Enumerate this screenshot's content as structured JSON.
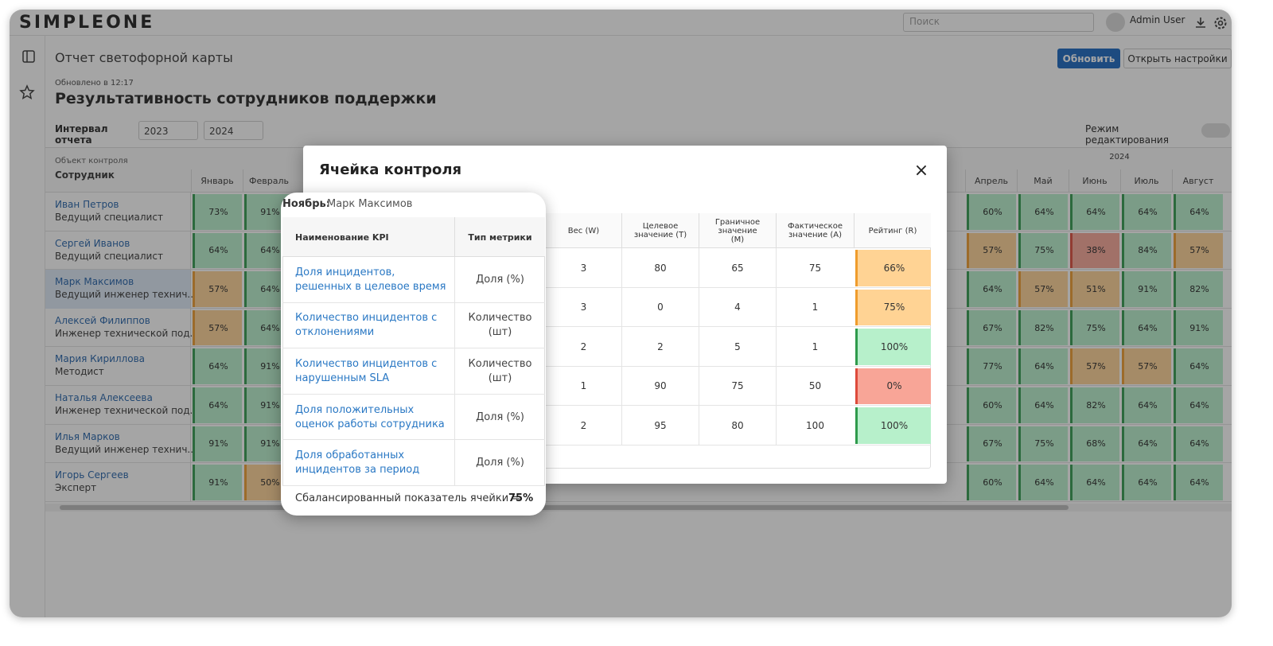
{
  "header": {
    "logo": "SIMPLEONE",
    "search_placeholder": "Поиск",
    "user": "Admin User"
  },
  "page": {
    "title": "Отчет светофорной карты",
    "buttons": [
      "Обновить",
      "Открыть настройки"
    ],
    "updated": "Обновлено в 12:17",
    "report_title": "Результативность сотрудников поддержки",
    "interval_label": "Интервал отчета",
    "interval": [
      "2023",
      "2024"
    ],
    "edit_mode": "Режим редактирования"
  },
  "table": {
    "object_label": "Объект контроля",
    "subject_label": "Сотрудник",
    "year": "2024",
    "left_months": [
      "Январь",
      "Февраль"
    ],
    "right_months": [
      "Апрель",
      "Май",
      "Июнь",
      "Июль",
      "Август"
    ],
    "selected_row": 2,
    "rows": [
      {
        "name": "Иван Петров",
        "role": "Ведущий специалист",
        "left": [
          {
            "text": "73%",
            "color": "green"
          },
          {
            "text": "91%",
            "color": "green"
          }
        ],
        "right": [
          {
            "text": "60%",
            "color": "green"
          },
          {
            "text": "64%",
            "color": "green"
          },
          {
            "text": "64%",
            "color": "green"
          },
          {
            "text": "64%",
            "color": "green"
          },
          {
            "text": "64%",
            "color": "green"
          }
        ]
      },
      {
        "name": "Сергей Иванов",
        "role": "Ведущий специалист",
        "left": [
          {
            "text": "64%",
            "color": "green"
          },
          {
            "text": "64%",
            "color": "green"
          }
        ],
        "right": [
          {
            "text": "57%",
            "color": "orange"
          },
          {
            "text": "75%",
            "color": "green"
          },
          {
            "text": "38%",
            "color": "red"
          },
          {
            "text": "84%",
            "color": "green"
          },
          {
            "text": "57%",
            "color": "orange"
          }
        ]
      },
      {
        "name": "Марк Максимов",
        "role": "Ведущий инженер технич...",
        "left": [
          {
            "text": "57%",
            "color": "orange"
          },
          {
            "text": "64%",
            "color": "green"
          }
        ],
        "right": [
          {
            "text": "64%",
            "color": "green"
          },
          {
            "text": "57%",
            "color": "orange"
          },
          {
            "text": "51%",
            "color": "orange"
          },
          {
            "text": "91%",
            "color": "green"
          },
          {
            "text": "82%",
            "color": "green"
          }
        ]
      },
      {
        "name": "Алексей Филиппов",
        "role": "Инженер технической под...",
        "left": [
          {
            "text": "57%",
            "color": "orange"
          },
          {
            "text": "64%",
            "color": "green"
          }
        ],
        "right": [
          {
            "text": "67%",
            "color": "green"
          },
          {
            "text": "82%",
            "color": "green"
          },
          {
            "text": "75%",
            "color": "green"
          },
          {
            "text": "64%",
            "color": "green"
          },
          {
            "text": "91%",
            "color": "green"
          }
        ]
      },
      {
        "name": "Мария Кириллова",
        "role": "Методист",
        "left": [
          {
            "text": "64%",
            "color": "green"
          },
          {
            "text": "91%",
            "color": "green"
          }
        ],
        "right": [
          {
            "text": "77%",
            "color": "green"
          },
          {
            "text": "64%",
            "color": "green"
          },
          {
            "text": "57%",
            "color": "orange"
          },
          {
            "text": "57%",
            "color": "orange"
          },
          {
            "text": "64%",
            "color": "green"
          }
        ]
      },
      {
        "name": "Наталья Алексеева",
        "role": "Инженер технической под...",
        "left": [
          {
            "text": "64%",
            "color": "green"
          },
          {
            "text": "91%",
            "color": "green"
          }
        ],
        "right": [
          {
            "text": "60%",
            "color": "green"
          },
          {
            "text": "64%",
            "color": "green"
          },
          {
            "text": "82%",
            "color": "green"
          },
          {
            "text": "64%",
            "color": "green"
          },
          {
            "text": "64%",
            "color": "green"
          }
        ]
      },
      {
        "name": "Илья Марков",
        "role": "Ведущий инженер технич...",
        "left": [
          {
            "text": "91%",
            "color": "green"
          },
          {
            "text": "91%",
            "color": "green"
          }
        ],
        "right": [
          {
            "text": "67%",
            "color": "green"
          },
          {
            "text": "75%",
            "color": "green"
          },
          {
            "text": "68%",
            "color": "green"
          },
          {
            "text": "64%",
            "color": "green"
          },
          {
            "text": "64%",
            "color": "green"
          }
        ]
      },
      {
        "name": "Игорь Сергеев",
        "role": "Эксперт",
        "left": [
          {
            "text": "91%",
            "color": "green"
          },
          {
            "text": "50%",
            "color": "orange"
          }
        ],
        "right": [
          {
            "text": "60%",
            "color": "green"
          },
          {
            "text": "64%",
            "color": "green"
          },
          {
            "text": "64%",
            "color": "green"
          },
          {
            "text": "64%",
            "color": "green"
          },
          {
            "text": "64%",
            "color": "green"
          }
        ]
      }
    ]
  },
  "modal": {
    "title": "Ячейка контроля",
    "close": "×",
    "columns": [
      "Вес (W)",
      "Целевое значение (T)",
      "Граничное значение (M)",
      "Фактическое значение (A)",
      "Рейтинг (R)"
    ],
    "rows": [
      {
        "cells": [
          "3",
          "80",
          "65",
          "75",
          "66%"
        ],
        "color": "orange"
      },
      {
        "cells": [
          "3",
          "0",
          "4",
          "1",
          "75%"
        ],
        "color": "orange"
      },
      {
        "cells": [
          "2",
          "2",
          "5",
          "1",
          "100%"
        ],
        "color": "green"
      },
      {
        "cells": [
          "1",
          "90",
          "75",
          "50",
          "0%"
        ],
        "color": "red"
      },
      {
        "cells": [
          "2",
          "95",
          "80",
          "100",
          "100%"
        ],
        "color": "green"
      }
    ]
  },
  "popup": {
    "month": "Ноябрь:",
    "employee": "Марк Максимов",
    "columns": [
      "Наименование KPI",
      "Тип метрики"
    ],
    "rows": [
      [
        "Доля инцидентов, решенных в целевое время",
        "Доля (%)"
      ],
      [
        "Количество инцидентов с отклонениями",
        "Количество (шт)"
      ],
      [
        "Количество инцидентов с нарушенным SLA",
        "Количество (шт)"
      ],
      [
        "Доля положительных оценок работы сотрудника",
        "Доля (%)"
      ],
      [
        "Доля обработанных инцидентов за период",
        "Доля (%)"
      ]
    ],
    "summary_label": "Сбалансированный показатель ячейки =",
    "summary_value": "75%"
  }
}
